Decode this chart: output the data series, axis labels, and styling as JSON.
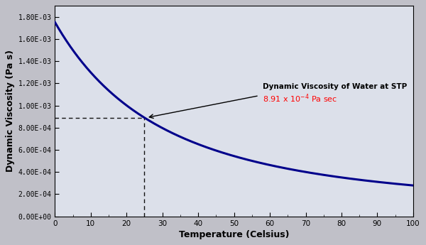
{
  "xlabel": "Temperature (Celsius)",
  "ylabel": "Dynamic Viscosity (Pa s)",
  "xlim": [
    0,
    100
  ],
  "ylim": [
    0,
    0.0019
  ],
  "yticks": [
    0.0,
    0.0002,
    0.0004,
    0.0006,
    0.0008,
    0.001,
    0.0012,
    0.0014,
    0.0016,
    0.0018
  ],
  "ytick_labels": [
    "0.00E+00",
    "2.00E-04",
    "4.00E-04",
    "6.00E-04",
    "8.00E-04",
    "1.00E-03",
    "1.20E-03",
    "1.40E-03",
    "1.60E-03",
    "1.80E-03"
  ],
  "xticks": [
    0,
    10,
    20,
    30,
    40,
    50,
    60,
    70,
    80,
    90,
    100
  ],
  "line_color": "#00008B",
  "fig_bg_color": "#C8C8C8",
  "plot_bg_color": "#E8E8F0",
  "annotation_text": "Dynamic Viscosity of Water at STP",
  "annotation_color": "red",
  "stp_temp": 25,
  "stp_visc": 0.000891,
  "dashed_line_color": "#111111",
  "curve_A": 2.414e-05,
  "curve_B": 247.8,
  "curve_C": 140.0
}
